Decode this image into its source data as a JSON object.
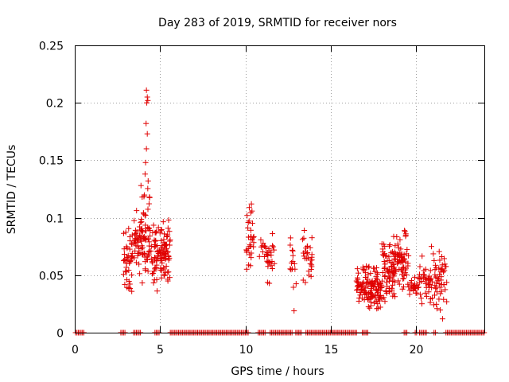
{
  "chart_data": {
    "type": "scatter",
    "title": "Day 283 of 2019, SRMTID for receiver nors",
    "xlabel": "GPS time / hours",
    "ylabel": "SRMTID / TECUs",
    "xlim": [
      0,
      24
    ],
    "ylim": [
      0,
      0.25
    ],
    "xticks": [
      0,
      5,
      10,
      15,
      20
    ],
    "xtick_labels": [
      "0",
      "5",
      "10",
      "15",
      "20"
    ],
    "yticks": [
      0,
      0.05,
      0.1,
      0.15,
      0.2,
      0.25
    ],
    "ytick_labels": [
      "0",
      "0.05",
      "0.1",
      "0.15",
      "0.2",
      "0.25"
    ],
    "grid": true,
    "marker": "plus",
    "series_color": "#e00000",
    "clusters": [
      {
        "x_from": 2.85,
        "x_to": 3.4,
        "y_min": 0.03,
        "y_max": 0.095,
        "count": 45
      },
      {
        "x_from": 3.45,
        "x_to": 3.8,
        "y_min": 0.05,
        "y_max": 0.11,
        "count": 30
      },
      {
        "x_from": 3.8,
        "x_to": 4.4,
        "y_min": 0.04,
        "y_max": 0.13,
        "count": 60
      },
      {
        "x_from": 4.4,
        "x_to": 4.9,
        "y_min": 0.035,
        "y_max": 0.11,
        "count": 40
      },
      {
        "x_from": 4.9,
        "x_to": 5.6,
        "y_min": 0.04,
        "y_max": 0.1,
        "count": 70
      },
      {
        "x_from": 10.05,
        "x_to": 10.5,
        "y_min": 0.05,
        "y_max": 0.113,
        "count": 30
      },
      {
        "x_from": 10.8,
        "x_to": 11.2,
        "y_min": 0.06,
        "y_max": 0.09,
        "count": 10
      },
      {
        "x_from": 11.2,
        "x_to": 11.7,
        "y_min": 0.037,
        "y_max": 0.088,
        "count": 25
      },
      {
        "x_from": 12.6,
        "x_to": 13.0,
        "y_min": 0.03,
        "y_max": 0.087,
        "count": 14
      },
      {
        "x_from": 13.3,
        "x_to": 13.9,
        "y_min": 0.04,
        "y_max": 0.09,
        "count": 28
      },
      {
        "x_from": 16.5,
        "x_to": 17.2,
        "y_min": 0.025,
        "y_max": 0.06,
        "count": 55
      },
      {
        "x_from": 17.2,
        "x_to": 18.0,
        "y_min": 0.015,
        "y_max": 0.06,
        "count": 80
      },
      {
        "x_from": 18.0,
        "x_to": 18.8,
        "y_min": 0.025,
        "y_max": 0.085,
        "count": 80
      },
      {
        "x_from": 18.8,
        "x_to": 19.6,
        "y_min": 0.035,
        "y_max": 0.09,
        "count": 60
      },
      {
        "x_from": 19.6,
        "x_to": 20.2,
        "y_min": 0.028,
        "y_max": 0.05,
        "count": 25
      },
      {
        "x_from": 20.2,
        "x_to": 21.0,
        "y_min": 0.02,
        "y_max": 0.068,
        "count": 40
      },
      {
        "x_from": 21.0,
        "x_to": 21.8,
        "y_min": 0.012,
        "y_max": 0.075,
        "count": 50
      }
    ],
    "outliers": [
      {
        "x": 3.95,
        "y": 0.118
      },
      {
        "x": 4.12,
        "y": 0.138
      },
      {
        "x": 4.15,
        "y": 0.148
      },
      {
        "x": 4.2,
        "y": 0.16
      },
      {
        "x": 4.25,
        "y": 0.173
      },
      {
        "x": 4.18,
        "y": 0.182
      },
      {
        "x": 4.22,
        "y": 0.2
      },
      {
        "x": 4.28,
        "y": 0.202
      },
      {
        "x": 4.25,
        "y": 0.205
      },
      {
        "x": 4.2,
        "y": 0.211
      },
      {
        "x": 4.3,
        "y": 0.132
      },
      {
        "x": 3.88,
        "y": 0.128
      },
      {
        "x": 5.5,
        "y": 0.098
      },
      {
        "x": 10.35,
        "y": 0.112
      },
      {
        "x": 10.1,
        "y": 0.102
      },
      {
        "x": 12.85,
        "y": 0.019
      },
      {
        "x": 13.45,
        "y": 0.089
      },
      {
        "x": 19.35,
        "y": 0.088
      },
      {
        "x": 19.4,
        "y": 0.086
      },
      {
        "x": 20.9,
        "y": 0.075
      },
      {
        "x": 21.55,
        "y": 0.012
      }
    ],
    "zero_ranges": [
      [
        0.05,
        0.55
      ],
      [
        2.7,
        2.95
      ],
      [
        3.45,
        3.85
      ],
      [
        4.7,
        4.95
      ],
      [
        5.6,
        10.2
      ],
      [
        10.75,
        11.2
      ],
      [
        11.45,
        12.75
      ],
      [
        12.95,
        13.3
      ],
      [
        13.55,
        16.55
      ],
      [
        16.85,
        17.2
      ],
      [
        19.3,
        19.5
      ],
      [
        19.95,
        20.05
      ],
      [
        20.2,
        20.6
      ],
      [
        21.05,
        21.2
      ],
      [
        21.75,
        24.0
      ]
    ]
  }
}
